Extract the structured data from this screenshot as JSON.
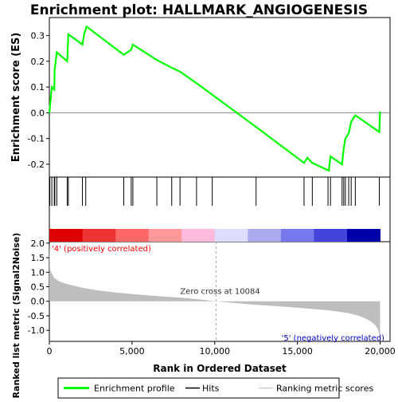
{
  "chart_data": {
    "type": "line",
    "title": "Enrichment plot: HALLMARK_ANGIOGENESIS",
    "top_panel": {
      "ylabel": "Enrichment score (ES)",
      "ylim": [
        -0.25,
        0.37
      ],
      "yticks": [
        -0.2,
        -0.1,
        0.0,
        0.1,
        0.2,
        0.3
      ],
      "ytick_labels": [
        "-0.2",
        "-0.1",
        "0.0",
        "0.1",
        "0.2",
        "0.3"
      ],
      "series_name": "Enrichment profile",
      "color": "#00ff00",
      "x": [
        0,
        150,
        300,
        320,
        450,
        1080,
        1150,
        2000,
        2100,
        2250,
        4500,
        4950,
        5050,
        6500,
        7400,
        7900,
        8900,
        12500,
        15400,
        15600,
        15900,
        16900,
        17000,
        17700,
        17800,
        17900,
        18100,
        18250,
        18500,
        19950,
        20000
      ],
      "y": [
        0.0,
        0.1,
        0.09,
        0.165,
        0.235,
        0.2,
        0.305,
        0.265,
        0.305,
        0.335,
        0.225,
        0.245,
        0.265,
        0.205,
        0.175,
        0.16,
        0.115,
        -0.055,
        -0.195,
        -0.175,
        -0.195,
        -0.225,
        -0.17,
        -0.2,
        -0.14,
        -0.1,
        -0.08,
        -0.035,
        -0.01,
        -0.075,
        0.005
      ]
    },
    "hits": [
      30,
      150,
      300,
      330,
      450,
      1080,
      1150,
      2000,
      2200,
      4500,
      4950,
      5050,
      6500,
      7400,
      7900,
      8900,
      9850,
      12500,
      15400,
      15900,
      16850,
      17000,
      17700,
      17800,
      17900,
      18100,
      18250,
      18500,
      19950
    ],
    "heatmap_colors": [
      "#dd0000",
      "#ee3333",
      "#ff6666",
      "#ff9999",
      "#ffbbdd",
      "#ddddff",
      "#aaaaee",
      "#7777ee",
      "#4444dd",
      "#0000aa"
    ],
    "bottom_panel": {
      "ylabel": "Ranked list metric (Signal2Noise)",
      "ylim": [
        -1.38,
        2.05
      ],
      "yticks": [
        -1.0,
        -0.5,
        0.0,
        0.5,
        1.0,
        1.5,
        2.0
      ],
      "ytick_labels": [
        "-1.0",
        "-0.5",
        "0.0",
        "0.5",
        "1.0",
        "1.5",
        "2.0"
      ],
      "series_name": "Ranking metric scores",
      "fill_color": "#bebebe",
      "x": [
        0,
        50,
        150,
        300,
        600,
        1000,
        2000,
        3000,
        4000,
        5000,
        6000,
        7000,
        8000,
        9000,
        10084,
        11000,
        12000,
        13000,
        14000,
        15000,
        16000,
        17000,
        18000,
        18600,
        19000,
        19400,
        19700,
        19850,
        19950,
        20000
      ],
      "y": [
        2.0,
        1.1,
        0.95,
        0.8,
        0.68,
        0.6,
        0.46,
        0.37,
        0.3,
        0.25,
        0.2,
        0.16,
        0.12,
        0.07,
        0.0,
        -0.05,
        -0.1,
        -0.14,
        -0.18,
        -0.22,
        -0.27,
        -0.32,
        -0.4,
        -0.48,
        -0.56,
        -0.68,
        -0.82,
        -0.95,
        -1.15,
        -1.3
      ],
      "zero_cross_label": "Zero cross at 10084",
      "zero_cross_rank": 10084,
      "pos_label": "'4' (positively correlated)",
      "pos_color": "#ff0000",
      "neg_label": "'5' (negatively correlated)",
      "neg_color": "#0000cc"
    },
    "xlabel": "Rank in Ordered Dataset",
    "xlim": [
      0,
      20600
    ],
    "xticks": [
      0,
      5000,
      10000,
      15000,
      20000
    ],
    "xtick_labels": [
      "0",
      "5,000",
      "10,000",
      "15,000",
      "20,000"
    ],
    "legend": {
      "placement": "bottom",
      "entries": [
        {
          "label": "Enrichment profile",
          "color": "#00ff00"
        },
        {
          "label": "Hits",
          "color": "#000000"
        },
        {
          "label": "Ranking metric scores",
          "color": "#bebebe"
        }
      ]
    }
  }
}
